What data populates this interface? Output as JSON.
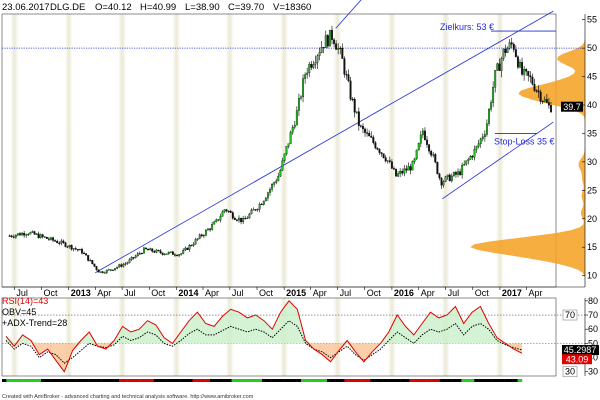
{
  "header": {
    "date": "23.06.2017",
    "symbol": "DLG.DE",
    "open": "O=40.12",
    "high": "H=40.99",
    "low": "L=38.90",
    "close": "C=39.70",
    "volume": "V=18360"
  },
  "chart_data": [
    {
      "type": "candlestick",
      "ylim": [
        8,
        56
      ],
      "y_ticks": [
        "10",
        "15",
        "20",
        "25",
        "30",
        "35",
        "40",
        "45",
        "50",
        "55"
      ],
      "x_labels": [
        {
          "label": "Jul",
          "year": false
        },
        {
          "label": "Oct",
          "year": false
        },
        {
          "label": "2013",
          "year": true
        },
        {
          "label": "Apr",
          "year": false
        },
        {
          "label": "Jul",
          "year": false
        },
        {
          "label": "Oct",
          "year": false
        },
        {
          "label": "2014",
          "year": true
        },
        {
          "label": "Apr",
          "year": false
        },
        {
          "label": "Jul",
          "year": false
        },
        {
          "label": "Oct",
          "year": false
        },
        {
          "label": "2015",
          "year": true
        },
        {
          "label": "Apr",
          "year": false
        },
        {
          "label": "Jul",
          "year": false
        },
        {
          "label": "Oct",
          "year": false
        },
        {
          "label": "2016",
          "year": true
        },
        {
          "label": "Apr",
          "year": false
        },
        {
          "label": "Jul",
          "year": false
        },
        {
          "label": "Oct",
          "year": false
        },
        {
          "label": "2017",
          "year": true
        },
        {
          "label": "Apr",
          "year": false
        }
      ],
      "price_path": [
        [
          "2012-06",
          17.0
        ],
        [
          "2012-08",
          17.6
        ],
        [
          "2012-10",
          16.6
        ],
        [
          "2012-12",
          15.6
        ],
        [
          "2013-02",
          14.2
        ],
        [
          "2013-04",
          10.6
        ],
        [
          "2013-05",
          10.9
        ],
        [
          "2013-07",
          12.2
        ],
        [
          "2013-09",
          14.6
        ],
        [
          "2013-11",
          14.0
        ],
        [
          "2014-01",
          13.8
        ],
        [
          "2014-03",
          16.5
        ],
        [
          "2014-05",
          19.4
        ],
        [
          "2014-06",
          21.8
        ],
        [
          "2014-07",
          20.4
        ],
        [
          "2014-08",
          19.6
        ],
        [
          "2014-10",
          22.8
        ],
        [
          "2014-12",
          27.8
        ],
        [
          "2015-02",
          39.0
        ],
        [
          "2015-03",
          46.0
        ],
        [
          "2015-05",
          51.0
        ],
        [
          "2015-06",
          52.3
        ],
        [
          "2015-07",
          48.2
        ],
        [
          "2015-08",
          41.5
        ],
        [
          "2015-09",
          36.0
        ],
        [
          "2015-11",
          32.5
        ],
        [
          "2015-12",
          30.5
        ],
        [
          "2016-01",
          27.5
        ],
        [
          "2016-03",
          29.5
        ],
        [
          "2016-04",
          35.5
        ],
        [
          "2016-05",
          31.5
        ],
        [
          "2016-06",
          26.5
        ],
        [
          "2016-08",
          28.0
        ],
        [
          "2016-10",
          32.5
        ],
        [
          "2016-11",
          36.0
        ],
        [
          "2016-12",
          45.0
        ],
        [
          "2017-01",
          49.5
        ],
        [
          "2017-02",
          50.8
        ],
        [
          "2017-03",
          45.5
        ],
        [
          "2017-04",
          44.5
        ],
        [
          "2017-05",
          42.0
        ],
        [
          "2017-06",
          39.7
        ]
      ],
      "last_price": "39.7",
      "horizontal_lines": [
        50.0
      ],
      "annotations": [
        {
          "text": "Zielkurs: 53 €",
          "value": 53
        },
        {
          "text": "Stop-Loss 35 €",
          "value": 35
        }
      ]
    },
    {
      "type": "line",
      "legend": [
        "RSI(14)=43",
        "OBV=45",
        "+ADX-Trend=28"
      ],
      "ylim": [
        27,
        82
      ],
      "y_ticks": [
        "30",
        "40",
        "50",
        "60",
        "70",
        "80"
      ],
      "reference_lines": [
        70,
        50
      ],
      "last_values": [
        "45.2987",
        "43.09"
      ],
      "series": [
        {
          "name": "RSI(14)",
          "color": "#e10000",
          "values": [
            55,
            48,
            56,
            52,
            42,
            46,
            38,
            30,
            45,
            52,
            58,
            48,
            46,
            52,
            62,
            58,
            60,
            66,
            63,
            54,
            50,
            58,
            66,
            72,
            64,
            62,
            69,
            74,
            72,
            68,
            70,
            66,
            60,
            72,
            80,
            74,
            52,
            46,
            42,
            37,
            45,
            52,
            44,
            37,
            44,
            50,
            58,
            70,
            62,
            56,
            64,
            72,
            68,
            70,
            76,
            64,
            72,
            76,
            64,
            54,
            50,
            46,
            43
          ]
        },
        {
          "name": "OBV",
          "color": "#000000",
          "values": [
            52,
            46,
            50,
            48,
            40,
            44,
            42,
            36,
            40,
            45,
            50,
            48,
            47,
            49,
            55,
            52,
            54,
            58,
            56,
            50,
            48,
            52,
            57,
            60,
            56,
            56,
            59,
            62,
            60,
            58,
            60,
            58,
            54,
            60,
            66,
            62,
            50,
            46,
            44,
            40,
            44,
            48,
            42,
            38,
            42,
            46,
            52,
            58,
            54,
            50,
            56,
            60,
            58,
            60,
            64,
            56,
            62,
            64,
            60,
            52,
            49,
            47,
            45.3
          ]
        }
      ],
      "adx_colors": [
        "#000000",
        "#22cc22",
        "#dd0000"
      ]
    }
  ],
  "footer": "Created with AmiBroker - advanced charting and technical analysis software. http://www.amibroker.com"
}
